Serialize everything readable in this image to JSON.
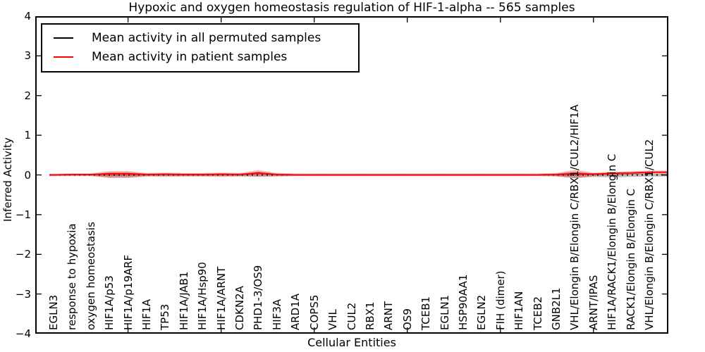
{
  "chart_data": {
    "type": "line",
    "title": "Hypoxic and oxygen homeostasis regulation of HIF-1-alpha -- 565 samples",
    "xlabel": "Cellular Entities",
    "ylabel": "Inferred Activity",
    "ylim": [
      -4,
      4
    ],
    "yticks": [
      "4",
      "3",
      "2",
      "1",
      "0",
      "−1",
      "−2",
      "−3",
      "−4"
    ],
    "grid": false,
    "legend_position": "upper left",
    "categories": [
      "EGLN3",
      "response to hypoxia",
      "oxygen homeostasis",
      "HIF1A/p53",
      "HIF1A/p19ARF",
      "HIF1A",
      "TP53",
      "HIF1A/JAB1",
      "HIF1A/Hsp90",
      "HIF1A/ARNT",
      "CDKN2A",
      "PHD1-3/OS9",
      "HIF3A",
      "ARD1A",
      "COPS5",
      "VHL",
      "CUL2",
      "RBX1",
      "ARNT",
      "OS9",
      "TCEB1",
      "EGLN1",
      "HSP90AA1",
      "EGLN2",
      "FIH (dimer)",
      "HIF1AN",
      "TCEB2",
      "GNB2L1",
      "VHL/Elongin B/Elongin C/RBX1/CUL2/HIF1A",
      "ARNT/IPAS",
      "HIF1A/RACK1/Elongin B/Elongin C",
      "RACK1/Elongin B/Elongin C",
      "VHL/Elongin B/Elongin C/RBX1/CUL2"
    ],
    "series": [
      {
        "name": "Mean activity in all permuted samples",
        "color": "#000000",
        "style": "dotted",
        "values": [
          0,
          0,
          0,
          0,
          0,
          0,
          0,
          0,
          0,
          0,
          0,
          0,
          0,
          0,
          0,
          0,
          0,
          0,
          0,
          0,
          0,
          0,
          0,
          0,
          0,
          0,
          0,
          0,
          0,
          0,
          0,
          0,
          0
        ]
      },
      {
        "name": "Mean activity in patient samples",
        "color": "#ff0000",
        "style": "solid",
        "values": [
          0.0,
          0.01,
          0.01,
          0.03,
          0.03,
          0.01,
          0.02,
          0.01,
          0.01,
          0.02,
          0.01,
          0.05,
          0.01,
          0.0,
          0.0,
          0.0,
          0.0,
          0.0,
          0.0,
          0.0,
          0.0,
          0.0,
          0.0,
          0.0,
          0.0,
          0.0,
          0.0,
          0.01,
          0.03,
          0.02,
          0.04,
          0.05,
          0.07
        ]
      }
    ],
    "bands": [
      {
        "name": "permuted-samples-range",
        "color": "rgba(120,120,120,0.50)",
        "upper": [
          0.02,
          0.02,
          0.02,
          0.05,
          0.05,
          0.03,
          0.03,
          0.03,
          0.03,
          0.03,
          0.03,
          0.04,
          0.03,
          0.02,
          0.02,
          0.02,
          0.02,
          0.02,
          0.02,
          0.02,
          0.02,
          0.02,
          0.02,
          0.02,
          0.02,
          0.02,
          0.02,
          0.03,
          0.07,
          0.04,
          0.05,
          0.04,
          0.03
        ],
        "lower": [
          -0.02,
          -0.02,
          -0.02,
          -0.06,
          -0.06,
          -0.03,
          -0.03,
          -0.03,
          -0.03,
          -0.03,
          -0.03,
          -0.04,
          -0.03,
          -0.02,
          -0.02,
          -0.02,
          -0.02,
          -0.02,
          -0.02,
          -0.02,
          -0.02,
          -0.02,
          -0.02,
          -0.02,
          -0.02,
          -0.02,
          -0.02,
          -0.03,
          -0.08,
          -0.05,
          -0.06,
          -0.05,
          -0.04
        ]
      },
      {
        "name": "patient-samples-range",
        "color": "rgba(230,40,40,0.30)",
        "upper": [
          0.03,
          0.04,
          0.04,
          0.1,
          0.1,
          0.05,
          0.06,
          0.05,
          0.05,
          0.06,
          0.05,
          0.12,
          0.05,
          0.04,
          0.04,
          0.04,
          0.04,
          0.04,
          0.04,
          0.04,
          0.04,
          0.04,
          0.04,
          0.04,
          0.04,
          0.04,
          0.04,
          0.05,
          0.13,
          0.06,
          0.08,
          0.09,
          0.11
        ],
        "lower": [
          -0.03,
          -0.03,
          -0.03,
          -0.08,
          -0.08,
          -0.04,
          -0.05,
          -0.04,
          -0.04,
          -0.05,
          -0.04,
          -0.05,
          -0.04,
          -0.03,
          -0.03,
          -0.03,
          -0.03,
          -0.03,
          -0.03,
          -0.03,
          -0.03,
          -0.03,
          -0.03,
          -0.03,
          -0.03,
          -0.03,
          -0.03,
          -0.04,
          -0.08,
          -0.03,
          -0.02,
          0.0,
          0.02
        ]
      }
    ]
  },
  "legend": {
    "entries": [
      {
        "label": "Mean activity in all permuted samples",
        "color": "#000000"
      },
      {
        "label": "Mean activity in patient samples",
        "color": "#ff0000"
      }
    ]
  }
}
